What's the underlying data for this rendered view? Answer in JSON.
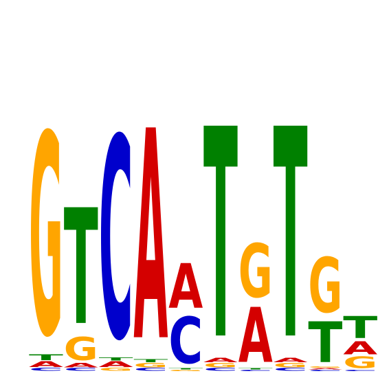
{
  "chart_data": {
    "type": "sequence-logo",
    "alphabet": [
      "A",
      "C",
      "G",
      "T"
    ],
    "colors": {
      "A": "#d40000",
      "C": "#0000cc",
      "G": "#ffa500",
      "T": "#008000"
    },
    "ylim": [
      0,
      2
    ],
    "positions": [
      {
        "letters": [
          {
            "base": "C",
            "height": 0.02
          },
          {
            "base": "A",
            "height": 0.04
          },
          {
            "base": "T",
            "height": 0.04
          },
          {
            "base": "G",
            "height": 1.39
          }
        ]
      },
      {
        "letters": [
          {
            "base": "C",
            "height": 0.02
          },
          {
            "base": "A",
            "height": 0.03
          },
          {
            "base": "G",
            "height": 0.16
          },
          {
            "base": "T",
            "height": 0.8
          }
        ]
      },
      {
        "letters": [
          {
            "base": "G",
            "height": 0.02
          },
          {
            "base": "A",
            "height": 0.04
          },
          {
            "base": "T",
            "height": 0.02
          },
          {
            "base": "C",
            "height": 1.39
          }
        ]
      },
      {
        "letters": [
          {
            "base": "C",
            "height": 0.02
          },
          {
            "base": "G",
            "height": 0.03
          },
          {
            "base": "T",
            "height": 0.02
          },
          {
            "base": "A",
            "height": 1.45
          }
        ]
      },
      {
        "letters": [
          {
            "base": "G",
            "height": 0.01
          },
          {
            "base": "T",
            "height": 0.01
          },
          {
            "base": "C",
            "height": 0.32
          },
          {
            "base": "A",
            "height": 0.31
          }
        ]
      },
      {
        "letters": [
          {
            "base": "C",
            "height": 0.02
          },
          {
            "base": "G",
            "height": 0.03
          },
          {
            "base": "A",
            "height": 0.03
          },
          {
            "base": "T",
            "height": 1.45
          }
        ]
      },
      {
        "letters": [
          {
            "base": "C",
            "height": 0.01
          },
          {
            "base": "T",
            "height": 0.01
          },
          {
            "base": "A",
            "height": 0.38
          },
          {
            "base": "G",
            "height": 0.37
          }
        ]
      },
      {
        "letters": [
          {
            "base": "C",
            "height": 0.02
          },
          {
            "base": "G",
            "height": 0.03
          },
          {
            "base": "A",
            "height": 0.03
          },
          {
            "base": "T",
            "height": 1.45
          }
        ]
      },
      {
        "letters": [
          {
            "base": "C",
            "height": 0.01
          },
          {
            "base": "A",
            "height": 0.01
          },
          {
            "base": "G",
            "height": 0.01
          },
          {
            "base": "T",
            "height": 0.28
          },
          {
            "base": "G",
            "height": 0.38
          }
        ]
      },
      {
        "letters": [
          {
            "base": "C",
            "height": 0.01
          },
          {
            "base": "G",
            "height": 0.08
          },
          {
            "base": "A",
            "height": 0.09
          },
          {
            "base": "T",
            "height": 0.15
          }
        ]
      }
    ]
  }
}
